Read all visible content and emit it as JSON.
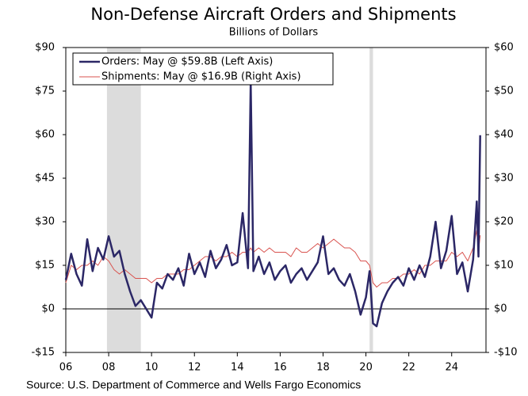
{
  "chart_data": {
    "type": "line",
    "title": "Non-Defense Aircraft Orders and Shipments",
    "subtitle": "Billions of Dollars",
    "source": "Source: U.S. Department of Commerce and Wells Fargo Economics",
    "x": [
      2006,
      2006.25,
      2006.5,
      2006.75,
      2007,
      2007.25,
      2007.5,
      2007.75,
      2008,
      2008.25,
      2008.5,
      2008.75,
      2009,
      2009.25,
      2009.5,
      2009.75,
      2010,
      2010.25,
      2010.5,
      2010.75,
      2011,
      2011.25,
      2011.5,
      2011.75,
      2012,
      2012.25,
      2012.5,
      2012.75,
      2013,
      2013.25,
      2013.5,
      2013.75,
      2014,
      2014.25,
      2014.5,
      2014.625,
      2014.75,
      2015,
      2015.25,
      2015.5,
      2015.75,
      2016,
      2016.25,
      2016.5,
      2016.75,
      2017,
      2017.25,
      2017.5,
      2017.75,
      2018,
      2018.25,
      2018.5,
      2018.75,
      2019,
      2019.25,
      2019.5,
      2019.75,
      2020,
      2020.17,
      2020.33,
      2020.5,
      2020.75,
      2021,
      2021.25,
      2021.5,
      2021.75,
      2022,
      2022.25,
      2022.5,
      2022.75,
      2023,
      2023.25,
      2023.5,
      2023.75,
      2024,
      2024.25,
      2024.5,
      2024.75,
      2025,
      2025.17,
      2025.25,
      2025.33
    ],
    "series": [
      {
        "name": "Orders: May @ $59.8B (Left Axis)",
        "color": "#2b2766",
        "width": 2.5,
        "values": [
          10,
          19,
          12,
          8,
          24,
          13,
          21,
          17,
          25,
          18,
          20,
          12,
          6,
          1,
          3,
          0,
          -3,
          9,
          7,
          12,
          10,
          14,
          8,
          19,
          12,
          16,
          11,
          20,
          14,
          17,
          22,
          15,
          16,
          33,
          14,
          78,
          13,
          18,
          12,
          16,
          10,
          13,
          15,
          9,
          12,
          14,
          10,
          13,
          16,
          25,
          12,
          14,
          10,
          8,
          12,
          6,
          -2,
          4,
          13,
          -5,
          -6,
          2,
          6,
          9,
          11,
          8,
          14,
          10,
          15,
          11,
          18,
          30,
          14,
          20,
          32,
          12,
          16,
          6,
          17,
          37,
          18,
          59.8
        ]
      },
      {
        "name": "Shipments: May @ $16.9B (Right Axis)",
        "color": "#d9534f",
        "width": 1,
        "axis": "y2",
        "values": [
          6,
          10,
          9,
          10,
          10,
          11,
          10,
          12,
          11,
          9,
          8,
          9,
          8,
          7,
          7,
          7,
          6,
          7,
          7,
          8,
          8,
          8,
          9,
          9,
          10,
          11,
          12,
          12,
          11,
          12,
          12,
          13,
          12,
          13,
          13,
          14,
          13,
          14,
          13,
          14,
          13,
          13,
          13,
          12,
          14,
          13,
          13,
          14,
          15,
          14,
          15,
          16,
          15,
          14,
          14,
          13,
          11,
          11,
          10,
          6,
          5,
          6,
          6,
          7,
          7,
          8,
          8,
          9,
          8,
          10,
          10,
          11,
          11,
          11,
          13,
          12,
          13,
          11,
          14,
          18,
          13,
          16.9
        ]
      }
    ],
    "xlim": [
      2006,
      2025.6
    ],
    "xticks": [
      {
        "value": 2006,
        "label": "06"
      },
      {
        "value": 2008,
        "label": "08"
      },
      {
        "value": 2010,
        "label": "10"
      },
      {
        "value": 2012,
        "label": "12"
      },
      {
        "value": 2014,
        "label": "14"
      },
      {
        "value": 2016,
        "label": "16"
      },
      {
        "value": 2018,
        "label": "18"
      },
      {
        "value": 2020,
        "label": "20"
      },
      {
        "value": 2022,
        "label": "22"
      },
      {
        "value": 2024,
        "label": "24"
      }
    ],
    "ylim": [
      -15,
      90
    ],
    "yticks": [
      {
        "value": -15,
        "label": "-$15"
      },
      {
        "value": 0,
        "label": "$0"
      },
      {
        "value": 15,
        "label": "$15"
      },
      {
        "value": 30,
        "label": "$30"
      },
      {
        "value": 45,
        "label": "$45"
      },
      {
        "value": 60,
        "label": "$60"
      },
      {
        "value": 75,
        "label": "$75"
      },
      {
        "value": 90,
        "label": "$90"
      }
    ],
    "y2lim": [
      -10,
      60
    ],
    "y2ticks": [
      {
        "value": -10,
        "label": "-$10"
      },
      {
        "value": 0,
        "label": "$0"
      },
      {
        "value": 10,
        "label": "$10"
      },
      {
        "value": 20,
        "label": "$20"
      },
      {
        "value": 30,
        "label": "$30"
      },
      {
        "value": 40,
        "label": "$40"
      },
      {
        "value": 50,
        "label": "$50"
      },
      {
        "value": 60,
        "label": "$60"
      }
    ],
    "shaded_ranges": [
      [
        2007.92,
        2009.5
      ],
      [
        2020.17,
        2020.33
      ]
    ],
    "shade_color": "#dcdcdc",
    "legend": "upper left"
  }
}
